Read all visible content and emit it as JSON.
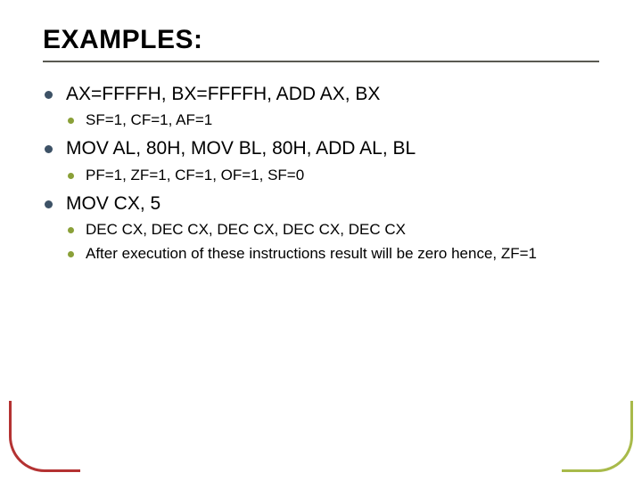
{
  "title": "EXAMPLES:",
  "title_color": "#000000",
  "title_fontsize": 30,
  "rule_color": "#5a5a52",
  "bullet_lvl1_color": "#3d5266",
  "bullet_lvl2_color": "#8aa038",
  "body_fontsize_lvl1": 21,
  "body_fontsize_lvl2": 17,
  "corner_bl_color": "#b43232",
  "corner_br_color": "#a8ba4a",
  "items": [
    {
      "text": "AX=FFFFH, BX=FFFFH, ADD AX, BX",
      "sub": [
        "SF=1, CF=1, AF=1"
      ]
    },
    {
      "text": "MOV AL, 80H, MOV BL, 80H, ADD AL, BL",
      "sub": [
        "PF=1, ZF=1, CF=1, OF=1, SF=0"
      ]
    },
    {
      "text": "MOV CX, 5",
      "sub": [
        "DEC CX, DEC CX, DEC CX, DEC CX, DEC CX",
        "After execution of these instructions result will be zero hence, ZF=1"
      ]
    }
  ]
}
